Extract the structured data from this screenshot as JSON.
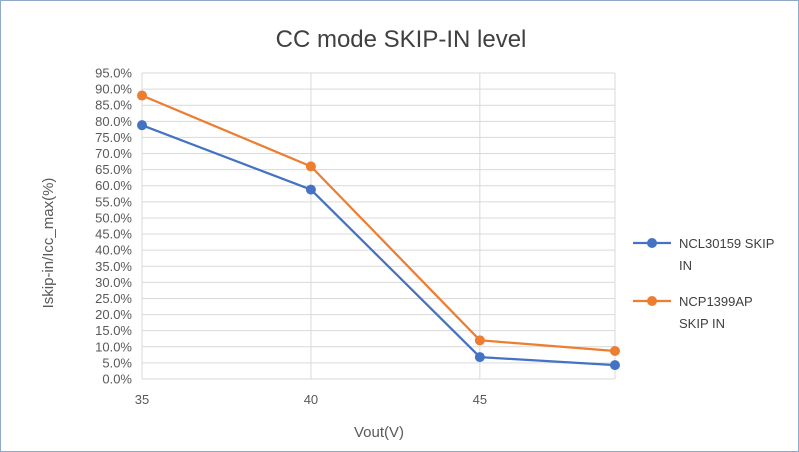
{
  "chart_data": {
    "type": "line",
    "title": "CC mode SKIP-IN level",
    "xlabel": "Vout(V)",
    "ylabel": "Iskip-in/Icc_max(%)",
    "x_ticks": [
      "35",
      "40",
      "45"
    ],
    "xlim": [
      35,
      49
    ],
    "ylim": [
      0,
      95
    ],
    "y_ticks": [
      "0.0%",
      "5.0%",
      "10.0%",
      "15.0%",
      "20.0%",
      "25.0%",
      "30.0%",
      "35.0%",
      "40.0%",
      "45.0%",
      "50.0%",
      "55.0%",
      "60.0%",
      "65.0%",
      "70.0%",
      "75.0%",
      "80.0%",
      "85.0%",
      "90.0%",
      "95.0%"
    ],
    "y_tick_values": [
      0,
      5,
      10,
      15,
      20,
      25,
      30,
      35,
      40,
      45,
      50,
      55,
      60,
      65,
      70,
      75,
      80,
      85,
      90,
      95
    ],
    "grid": true,
    "legend_position": "right",
    "series": [
      {
        "name": "NCL30159 SKIP IN",
        "legend_lines": [
          "NCL30159 SKIP",
          "IN"
        ],
        "color": "#4472c4",
        "x": [
          35,
          40,
          45,
          49
        ],
        "y": [
          78.8,
          58.8,
          6.8,
          4.3
        ]
      },
      {
        "name": "NCP1399AP SKIP IN",
        "legend_lines": [
          "NCP1399AP",
          "SKIP IN"
        ],
        "color": "#ed7d31",
        "x": [
          35,
          40,
          45,
          49
        ],
        "y": [
          88.0,
          66.0,
          12.0,
          8.7
        ]
      }
    ]
  }
}
